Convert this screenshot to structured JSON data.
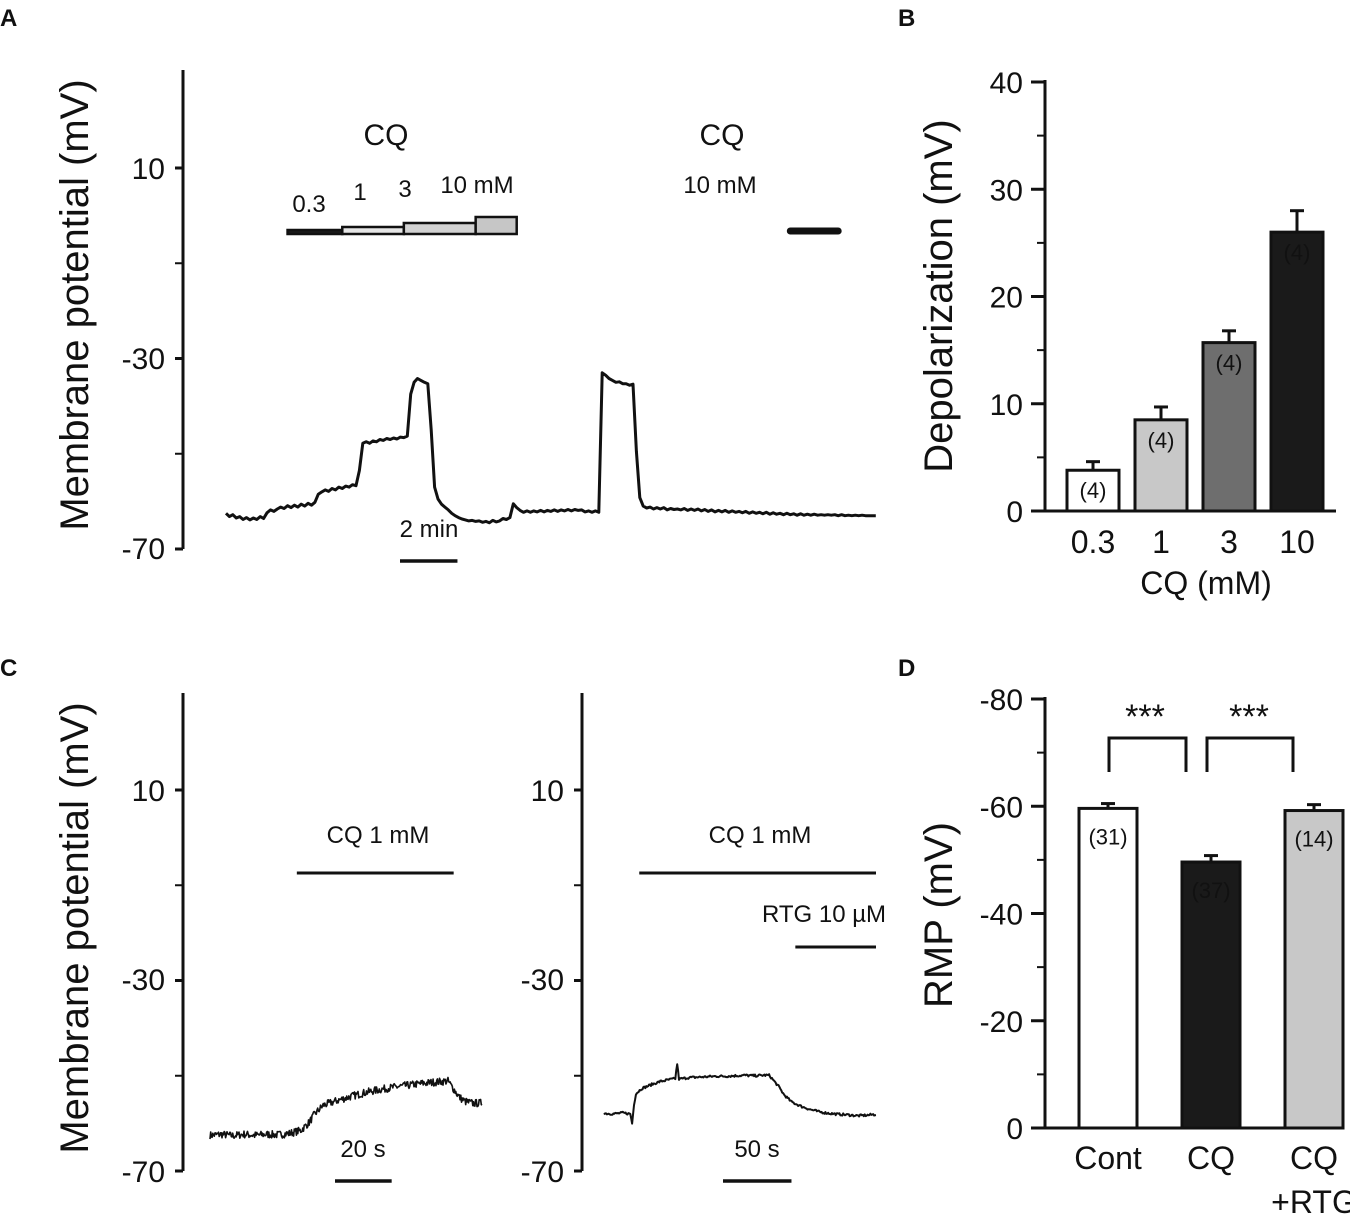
{
  "colors": {
    "ink": "#111111",
    "bar_white": "#ffffff",
    "bar_light": "#c8c8c8",
    "bar_mid": "#6e6e6e",
    "bar_black": "#1a1a1a"
  },
  "panel_a": {
    "label": "A",
    "ylabel": "Membrane potential (mV)",
    "yticks": [
      "10",
      "-30",
      "-70"
    ],
    "cq_title_left": "CQ",
    "conc_labels": [
      "0.3",
      "1",
      "3",
      "10 mM"
    ],
    "cq_title_right": "CQ",
    "conc_right": "10 mM",
    "scale_bar": "2 min"
  },
  "panel_b": {
    "label": "B",
    "xlabel": "CQ (mM)"
  },
  "panel_c": {
    "label": "C",
    "ylabel": "Membrane potential (mV)",
    "left_yticks": [
      "10",
      "-30",
      "-70"
    ],
    "left_drug": "CQ 1 mM",
    "left_scale": "20 s",
    "right_yticks": [
      "10",
      "-30",
      "-70"
    ],
    "right_drug": "CQ 1 mM",
    "right_drug2": "RTG 10 µM",
    "right_scale": "50 s"
  },
  "panel_d": {
    "label": "D",
    "sig_left": "***",
    "sig_right": "***"
  },
  "chart_data": [
    {
      "type": "line",
      "panel": "A",
      "title": "",
      "ylabel": "Membrane potential (mV)",
      "ylim": [
        -70,
        10
      ],
      "yticks": [
        10,
        -30,
        -70
      ],
      "series": [
        {
          "name": "membrane potential",
          "x_min": [
            0,
            0.5,
            1,
            1.5,
            2,
            2.5,
            3,
            3.5,
            4,
            4.5,
            5,
            5.5,
            6,
            6.5,
            7,
            7.5,
            8,
            8.5,
            9,
            9.5,
            10,
            10.5,
            11,
            11.5,
            12,
            12.5,
            13,
            13.5,
            14,
            14.5,
            15,
            15.5,
            16,
            16.5,
            17,
            17.5,
            18,
            18.5,
            19,
            19.5,
            20,
            20.5,
            21,
            21.5,
            22,
            22.5,
            23,
            23.5,
            24,
            24.5,
            25,
            25.5,
            26,
            26.5,
            27,
            27.5,
            28,
            28.5,
            29,
            29.5,
            30,
            30.5,
            31,
            31.5,
            32,
            32.5,
            33,
            33.5,
            34,
            34.5,
            35,
            35.5,
            36,
            36.5,
            37,
            37.5,
            38,
            38.5,
            39,
            39.5,
            40,
            40.5,
            41,
            41.5,
            42,
            42.5,
            43,
            43.5,
            44,
            44.5,
            45,
            45.5,
            46,
            46.5,
            47,
            47.5,
            48,
            48.5,
            49,
            49.5,
            50,
            50.5,
            51,
            51.5,
            52,
            52.5,
            53,
            53.5,
            54,
            54.5,
            55,
            55.5,
            56,
            56.5,
            57,
            57.5,
            58,
            58.5,
            59,
            59.5,
            60,
            60.5,
            61,
            61.5,
            62,
            62.5,
            63,
            63.5,
            64,
            64.5,
            65,
            65.5,
            66,
            66.5,
            67,
            67.5,
            68,
            68.5,
            69,
            69.5,
            70,
            70.5,
            71,
            71.5,
            72,
            72.5,
            73,
            73.5,
            74,
            74.5,
            75,
            75.5,
            76,
            76.5,
            77,
            77.5,
            78,
            78.5,
            79,
            79.5,
            80,
            80.5,
            81,
            81.5,
            82,
            82.5,
            83,
            83.5,
            84,
            84.5,
            85,
            85.5,
            86,
            86.5,
            87,
            87.5,
            88,
            88.5,
            89,
            89.5,
            90,
            90.5,
            91,
            91.5,
            92,
            92.5,
            93,
            93.5,
            94,
            94.5,
            95
          ],
          "y_mV": [
            -62.5,
            -63.2,
            -62.8,
            -63.5,
            -63.2,
            -63.8,
            -63.4,
            -63.9,
            -63.5,
            -63.8,
            -63.2,
            -63.6,
            -62.4,
            -61.8,
            -62.1,
            -61.6,
            -61.2,
            -61.5,
            -60.9,
            -61.3,
            -60.8,
            -61.2,
            -60.6,
            -61.0,
            -60.4,
            -60.8,
            -60.2,
            -58.5,
            -58.0,
            -57.6,
            -57.9,
            -57.3,
            -57.6,
            -57.0,
            -57.3,
            -56.8,
            -57.0,
            -56.5,
            -56.7,
            -53.5,
            -47.8,
            -47.5,
            -47.8,
            -47.3,
            -47.5,
            -47.0,
            -47.2,
            -46.8,
            -47.0,
            -46.7,
            -46.9,
            -46.5,
            -46.6,
            -46.3,
            -37.5,
            -35.0,
            -34.2,
            -34.6,
            -35.0,
            -35.3,
            -45.0,
            -57.0,
            -59.5,
            -60.6,
            -61.2,
            -61.8,
            -62.5,
            -63.0,
            -63.4,
            -63.7,
            -63.9,
            -64.1,
            -64.0,
            -64.2,
            -64.1,
            -64.4,
            -64.2,
            -64.5,
            -64.0,
            -64.3,
            -64.1,
            -63.6,
            -63.8,
            -63.4,
            -60.5,
            -61.3,
            -61.9,
            -62.3,
            -62.0,
            -62.3,
            -62.0,
            -62.2,
            -61.9,
            -62.2,
            -61.9,
            -62.1,
            -61.8,
            -62.1,
            -61.8,
            -62.0,
            -61.7,
            -62.0,
            -61.7,
            -61.9,
            -61.8,
            -62.2,
            -62.0,
            -62.3,
            -62.0,
            -62.3,
            -33.0,
            -33.5,
            -34.2,
            -34.6,
            -35.0,
            -34.9,
            -35.3,
            -35.3,
            -35.6,
            -35.4,
            -49.5,
            -59.2,
            -61.0,
            -61.4,
            -61.2,
            -61.6,
            -61.3,
            -61.6,
            -61.3,
            -61.8,
            -61.5,
            -61.7,
            -61.6,
            -61.8,
            -61.5,
            -61.9,
            -61.6,
            -61.9,
            -61.6,
            -62.0,
            -61.7,
            -62.1,
            -61.8,
            -62.2,
            -61.9,
            -62.2,
            -61.9,
            -62.3,
            -62.0,
            -62.3,
            -62.1,
            -62.4,
            -62.1,
            -62.5,
            -62.2,
            -62.5,
            -62.3,
            -62.6,
            -62.3,
            -62.7,
            -62.4,
            -62.7,
            -62.5,
            -62.8,
            -62.5,
            -62.8,
            -62.6,
            -62.9,
            -62.6,
            -62.9,
            -62.7,
            -62.9,
            -62.7,
            -62.9,
            -62.8,
            -62.9,
            -62.8,
            -62.9,
            -62.8,
            -63.0,
            -62.8,
            -63.0,
            -62.9,
            -63.0,
            -62.9,
            -63.0,
            -62.9,
            -63.0,
            -63.0,
            -63.0,
            -63.0
          ]
        }
      ],
      "applications": [
        {
          "drug": "CQ",
          "conc": "0.3",
          "start_min": 9,
          "end_min": 17
        },
        {
          "drug": "CQ",
          "conc": "1",
          "start_min": 17,
          "end_min": 26
        },
        {
          "drug": "CQ",
          "conc": "3",
          "start_min": 26,
          "end_min": 36.5
        },
        {
          "drug": "CQ",
          "conc": "10 mM",
          "start_min": 36.5,
          "end_min": 42.5
        },
        {
          "drug": "CQ",
          "conc": "10 mM",
          "start_min": 82.5,
          "end_min": 89.5
        }
      ],
      "scale_bar_min": 2
    },
    {
      "type": "bar",
      "panel": "B",
      "title": "",
      "xlabel": "CQ (mM)",
      "ylabel": "Depolarization (mV)",
      "categories": [
        "0.3",
        "1",
        "3",
        "10"
      ],
      "values": [
        3.8,
        8.5,
        15.7,
        26.0
      ],
      "errors": [
        0.8,
        1.2,
        1.1,
        2.0
      ],
      "n_labels": [
        "(4)",
        "(4)",
        "(4)",
        "(4)"
      ],
      "fills": [
        "#ffffff",
        "#c8c8c8",
        "#6e6e6e",
        "#1a1a1a"
      ],
      "n_label_colors": [
        "#111111",
        "#111111",
        "#ffffff",
        "#ffffff"
      ],
      "ylim": [
        0,
        40
      ],
      "yticks": [
        0,
        10,
        20,
        30,
        40
      ]
    },
    {
      "type": "line",
      "panel": "C-left",
      "title": "",
      "ylabel": "Membrane potential (mV)",
      "ylim": [
        -70,
        10
      ],
      "yticks": [
        10,
        -30,
        -70
      ],
      "series": [
        {
          "name": "membrane potential",
          "x_s": [
            0,
            4,
            8,
            12,
            16,
            20,
            24,
            28,
            32,
            35,
            37,
            40,
            45,
            50,
            55,
            60,
            65,
            70,
            75,
            80,
            84,
            86,
            88,
            90,
            93,
            96
          ],
          "y_mV": [
            -62.5,
            -62.3,
            -62.6,
            -62.3,
            -62.5,
            -62.3,
            -62.4,
            -62.1,
            -61.5,
            -59.8,
            -58.0,
            -56.2,
            -55.2,
            -54.3,
            -53.5,
            -52.9,
            -52.4,
            -52.0,
            -51.6,
            -51.3,
            -51.1,
            -52.8,
            -54.5,
            -55.4,
            -55.8,
            -55.7
          ],
          "noisy": true
        }
      ],
      "applications": [
        {
          "drug": "CQ 1 mM",
          "start_s": 31,
          "end_s": 86
        }
      ],
      "scale_bar_s": 20
    },
    {
      "type": "line",
      "panel": "C-right",
      "title": "",
      "ylabel": "",
      "ylim": [
        -70,
        10
      ],
      "yticks": [
        10,
        -30,
        -70
      ],
      "series": [
        {
          "name": "membrane potential",
          "x_s": [
            0,
            5,
            10,
            14,
            15,
            16,
            17,
            20,
            25,
            30,
            35,
            38,
            39,
            40,
            45,
            50,
            55,
            60,
            65,
            70,
            75,
            80,
            85,
            88,
            90,
            93,
            96,
            100,
            105,
            110,
            115,
            120,
            125,
            130,
            135,
            140,
            145
          ],
          "y_mV": [
            -57.9,
            -58.0,
            -57.8,
            -58.0,
            -60.0,
            -56.0,
            -53.8,
            -52.7,
            -51.9,
            -51.2,
            -50.8,
            -50.6,
            -47.5,
            -50.7,
            -50.4,
            -50.3,
            -50.2,
            -50.1,
            -50.1,
            -50.0,
            -49.9,
            -50.0,
            -49.9,
            -49.9,
            -50.8,
            -52.2,
            -54.0,
            -55.5,
            -56.4,
            -57.1,
            -57.6,
            -57.9,
            -58.1,
            -58.2,
            -58.4,
            -58.3,
            -58.1
          ],
          "noisy": false
        }
      ],
      "applications": [
        {
          "drug": "CQ 1 mM",
          "start_s": 6,
          "end_s": 145
        },
        {
          "drug": "RTG 10 µM",
          "start_s": 102,
          "end_s": 145
        }
      ],
      "scale_bar_s": 50
    },
    {
      "type": "bar",
      "panel": "D",
      "title": "",
      "xlabel": "",
      "ylabel": "RMP (mV)",
      "categories": [
        "Cont",
        "CQ",
        "CQ +RTG"
      ],
      "category_lines": [
        [
          "Cont"
        ],
        [
          "CQ"
        ],
        [
          "CQ",
          "+RTG"
        ]
      ],
      "values": [
        -59.6,
        -49.6,
        -59.2
      ],
      "errors": [
        0.9,
        1.2,
        1.1
      ],
      "n_labels": [
        "(31)",
        "(37)",
        "(14)"
      ],
      "fills": [
        "#ffffff",
        "#1a1a1a",
        "#c8c8c8"
      ],
      "n_label_colors": [
        "#111111",
        "#ffffff",
        "#111111"
      ],
      "ylim": [
        0,
        -80
      ],
      "yticks": [
        0,
        -20,
        -40,
        -60,
        -80
      ],
      "significance": [
        {
          "between": [
            "Cont",
            "CQ"
          ],
          "label": "***"
        },
        {
          "between": [
            "CQ",
            "CQ +RTG"
          ],
          "label": "***"
        }
      ]
    }
  ]
}
